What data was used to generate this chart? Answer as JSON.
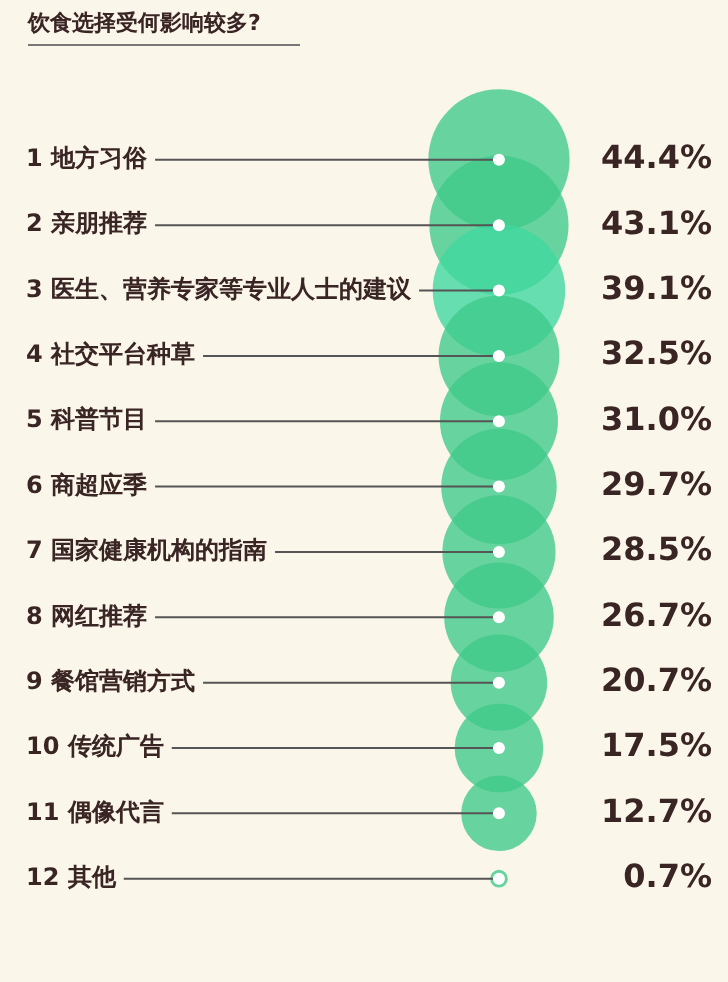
{
  "chart_data": {
    "type": "other",
    "title": "饮食选择受何影响较多?",
    "categories": [
      "1 地方习俗",
      "2 亲朋推荐",
      "3 医生、营养专家等专业人士的建议",
      "4 社交平台种草",
      "5 科普节目",
      "6 商超应季",
      "7 国家健康机构的指南",
      "8 网红推荐",
      "9 餐馆营销方式",
      "10 传统广告",
      "11 偶像代言",
      "12 其他"
    ],
    "values": [
      44.4,
      43.1,
      39.1,
      32.5,
      31.0,
      29.7,
      28.5,
      26.7,
      20.7,
      17.5,
      12.7,
      0.7
    ],
    "value_labels": [
      "44.4%",
      "43.1%",
      "39.1%",
      "32.5%",
      "31.0%",
      "29.7%",
      "28.5%",
      "26.7%",
      "20.7%",
      "17.5%",
      "12.7%",
      "0.7%"
    ],
    "colors": [
      "#3fc98a",
      "#3fc98a",
      "#3fd7a0",
      "#3fc98a",
      "#3fc98a",
      "#3fc98a",
      "#3fc98a",
      "#3fc98a",
      "#3fc98a",
      "#3fc98a",
      "#3fc98a",
      "#3fc98a"
    ]
  }
}
